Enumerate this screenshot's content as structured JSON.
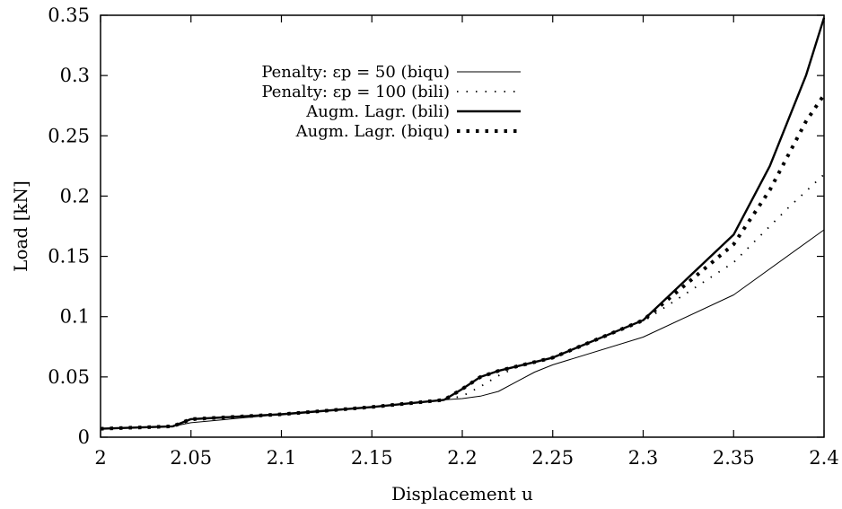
{
  "chart_data": {
    "type": "line",
    "title": "",
    "xlabel": "Displacement u",
    "ylabel": "Load [kN]",
    "xlim": [
      2,
      2.4
    ],
    "ylim": [
      0,
      0.35
    ],
    "grid": false,
    "legend_position": "top-left",
    "x_ticks": [
      "2",
      "2.05",
      "2.1",
      "2.15",
      "2.2",
      "2.25",
      "2.3",
      "2.35",
      "2.4"
    ],
    "y_ticks": [
      "0",
      "0.05",
      "0.1",
      "0.15",
      "0.2",
      "0.25",
      "0.3",
      "0.35"
    ],
    "series": [
      {
        "name": "Penalty: εp = 50 (biqu)",
        "style": "thin-solid",
        "x": [
          2.0,
          2.04,
          2.05,
          2.1,
          2.15,
          2.19,
          2.2,
          2.21,
          2.22,
          2.23,
          2.24,
          2.25,
          2.3,
          2.35,
          2.4
        ],
        "y": [
          0.007,
          0.009,
          0.012,
          0.019,
          0.025,
          0.031,
          0.032,
          0.034,
          0.038,
          0.046,
          0.054,
          0.06,
          0.083,
          0.118,
          0.172
        ]
      },
      {
        "name": "Penalty: εp = 100 (bili)",
        "style": "fine-dotted",
        "x": [
          2.0,
          2.04,
          2.05,
          2.1,
          2.15,
          2.19,
          2.2,
          2.21,
          2.22,
          2.23,
          2.24,
          2.25,
          2.3,
          2.35,
          2.38,
          2.4
        ],
        "y": [
          0.007,
          0.009,
          0.014,
          0.019,
          0.025,
          0.031,
          0.034,
          0.042,
          0.051,
          0.058,
          0.062,
          0.066,
          0.096,
          0.145,
          0.19,
          0.218
        ]
      },
      {
        "name": "Augm. Lagr. (bili)",
        "style": "thick-solid",
        "x": [
          2.0,
          2.04,
          2.05,
          2.1,
          2.15,
          2.19,
          2.2,
          2.21,
          2.22,
          2.25,
          2.3,
          2.35,
          2.37,
          2.39,
          2.4
        ],
        "y": [
          0.007,
          0.009,
          0.015,
          0.019,
          0.025,
          0.031,
          0.04,
          0.05,
          0.055,
          0.066,
          0.097,
          0.168,
          0.225,
          0.3,
          0.348
        ]
      },
      {
        "name": "Augm. Lagr. (biqu)",
        "style": "thick-dotted",
        "x": [
          2.0,
          2.04,
          2.05,
          2.1,
          2.15,
          2.19,
          2.2,
          2.21,
          2.22,
          2.25,
          2.3,
          2.35,
          2.37,
          2.39,
          2.4
        ],
        "y": [
          0.007,
          0.009,
          0.015,
          0.019,
          0.025,
          0.031,
          0.04,
          0.05,
          0.055,
          0.066,
          0.097,
          0.16,
          0.205,
          0.262,
          0.284
        ]
      }
    ]
  }
}
